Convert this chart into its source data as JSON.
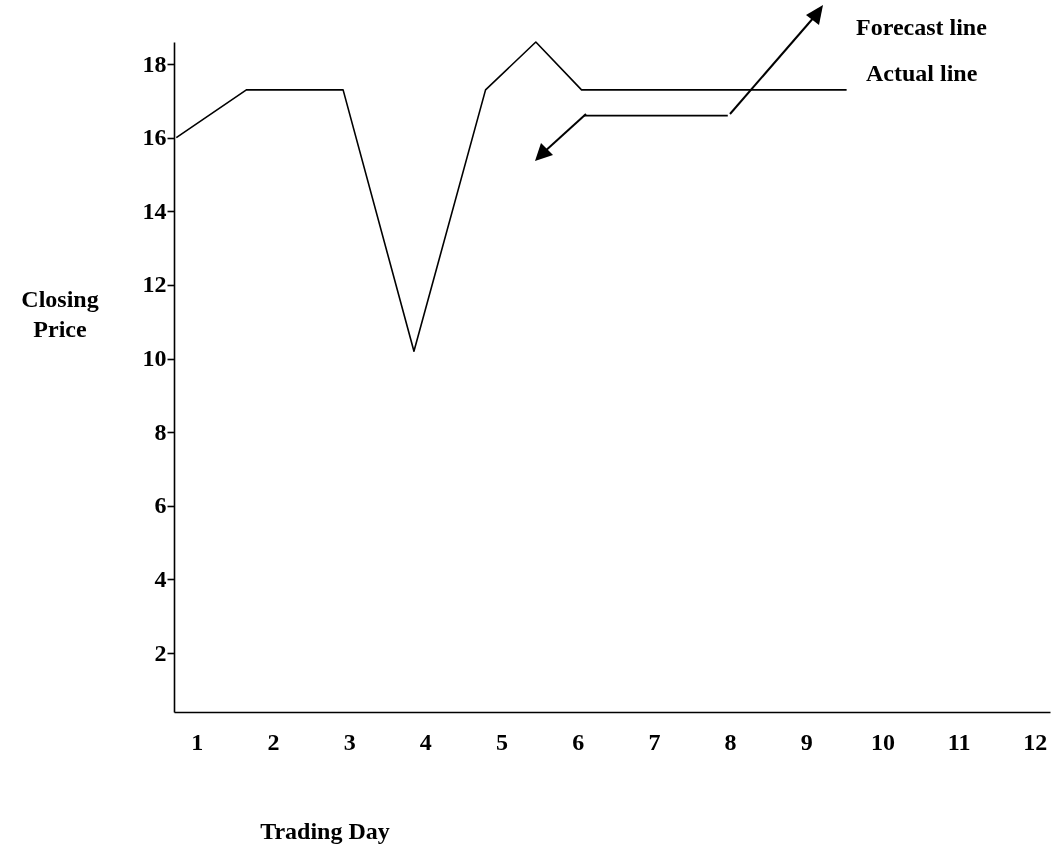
{
  "chart_data": {
    "type": "line",
    "xlabel": "Trading Day",
    "ylabel": "Closing Price",
    "xlim": [
      0.7,
      12.2
    ],
    "xticks": [
      1,
      2,
      3,
      4,
      5,
      6,
      7,
      8,
      9,
      10,
      11,
      12
    ],
    "ylim": [
      0.4,
      18.6
    ],
    "yticks": [
      2,
      4,
      6,
      8,
      10,
      12,
      14,
      16,
      18
    ],
    "series": [
      {
        "color": "#000000",
        "x": [
          0.73,
          1.65,
          2.92,
          3.85,
          4.79,
          5.45,
          6.05,
          9.53
        ],
        "values": [
          16,
          17.3,
          17.3,
          10.2,
          17.3,
          18.6,
          17.3,
          17.3
        ]
      },
      {
        "color": "#000000",
        "x": [
          6.08,
          7.97
        ],
        "values": [
          16.6,
          16.6
        ]
      }
    ],
    "annotations": [
      "Forecast line",
      "Actual line"
    ],
    "line_style": "solid"
  }
}
